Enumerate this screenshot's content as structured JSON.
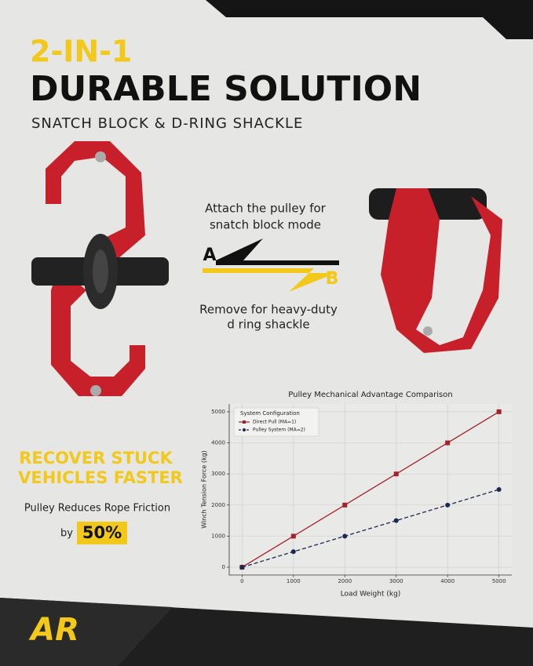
{
  "header": {
    "title_accent": "2-IN-1",
    "title": "DURABLE SOLUTION",
    "subtitle": "SNATCH BLOCK & D-RING SHACKLE"
  },
  "modes": {
    "attach": [
      "Attach the pulley for",
      "snatch block mode"
    ],
    "a": "A",
    "b": "B",
    "remove": [
      "Remove for heavy-duty",
      "d ring shackle"
    ]
  },
  "promo": {
    "headline": [
      "RECOVER STUCK",
      "VEHICLES FASTER"
    ],
    "text": "Pulley Reduces Rope Friction",
    "by": "by",
    "highlight": "50%"
  },
  "logo": "AR",
  "chart_data": {
    "type": "line",
    "title": "Pulley  Mechanical Advantage Comparison",
    "x_label": "Load  Weight (kg)",
    "y_label": "Winch  Tension Force (kg)",
    "x": [
      0,
      1000,
      2000,
      3000,
      4000,
      5000
    ],
    "series": [
      {
        "name": "Direct Pull (MA=1)",
        "color": "#a3212b",
        "marker": "square",
        "linestyle": "solid",
        "values": [
          0,
          1000,
          2000,
          3000,
          4000,
          5000
        ]
      },
      {
        "name": "Pulley System (MA=2)",
        "color": "#1b2850",
        "marker": "circle",
        "linestyle": "dashed",
        "values": [
          0,
          500,
          1000,
          1500,
          2000,
          2500
        ]
      }
    ],
    "legend_title": "System Configuration",
    "legend": "upper left",
    "xlim": [
      -250,
      5250
    ],
    "ylim": [
      -250,
      5250
    ],
    "xticks": [
      0,
      1000,
      2000,
      3000,
      4000,
      5000
    ],
    "yticks": [
      0,
      1000,
      2000,
      3000,
      4000,
      5000
    ],
    "grid": true
  }
}
